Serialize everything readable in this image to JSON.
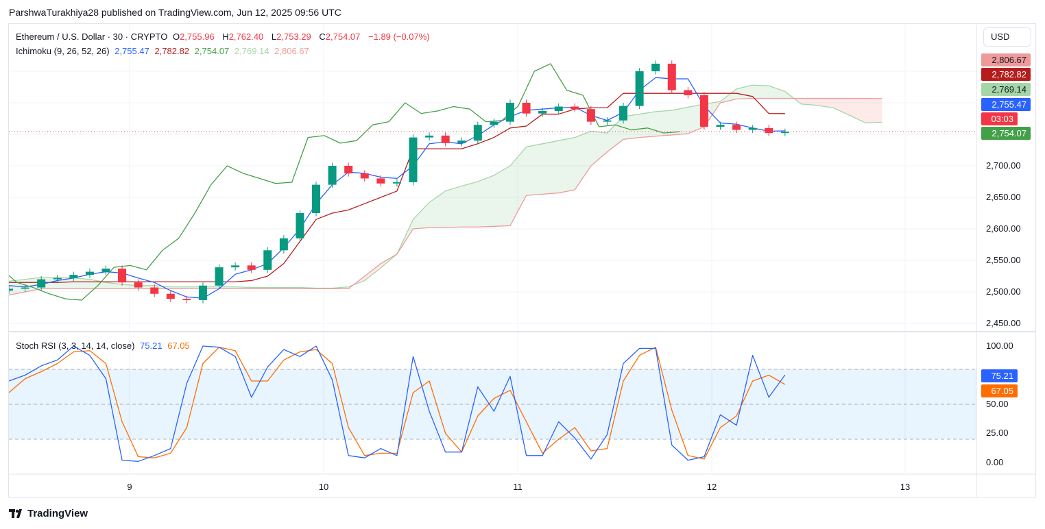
{
  "attribution": "ParshwaTurakhiya28 published on TradingView.com, Jun 12, 2025 09:56 UTC",
  "legend": {
    "symbol": "Ethereum / U.S. Dollar · 30 · CRYPTO",
    "o_label": "O",
    "o": "2,755.96",
    "h_label": "H",
    "h": "2,762.40",
    "l_label": "L",
    "l": "2,753.29",
    "c_label": "C",
    "c": "2,754.07",
    "change": "−1.89 (−0.07%)"
  },
  "ichimoku": {
    "label": "Ichimoku (9, 26, 52, 26)",
    "conversion": "2,755.47",
    "base": "2,782.82",
    "lagging": "2,754.07",
    "span_a": "2,769.14",
    "span_b": "2,806.67"
  },
  "stoch": {
    "label": "Stoch RSI (3, 3, 14, 14, close)",
    "k": "75.21",
    "d": "67.05"
  },
  "price_axis": {
    "currency": "USD",
    "ticks": [
      "2,700.00",
      "2,650.00",
      "2,600.00",
      "2,550.00",
      "2,500.00",
      "2,450.00"
    ],
    "badges": {
      "span_b": "2,806.67",
      "base": "2,782.82",
      "span_a": "2,769.14",
      "conversion": "2,755.47",
      "countdown": "03:03",
      "last": "2,754.07"
    }
  },
  "stoch_axis": {
    "ticks": [
      "100.00",
      "50.00",
      "25.00",
      "0.00"
    ],
    "k_badge": "75.21",
    "d_badge": "67.05"
  },
  "time_axis": {
    "ticks": [
      "9",
      "10",
      "11",
      "12",
      "13"
    ]
  },
  "brand": "TradingView",
  "colors": {
    "up": "#089981",
    "down": "#f23645",
    "conversion": "#2962ff",
    "base": "#b71c1c",
    "lagging": "#43a047",
    "span_a": "#a5d6a7",
    "span_b": "#ef9a9a",
    "stoch_k": "#2962ff",
    "stoch_d": "#ff6d00"
  },
  "chart_data": [
    {
      "type": "candlestick",
      "title": "Ethereum / U.S. Dollar · 30 · CRYPTO",
      "x_start": "2025-06-08 09:00",
      "x_step_hours": 2,
      "ylim": [
        2430,
        2900
      ],
      "close": [
        2505,
        2507,
        2520,
        2522,
        2527,
        2532,
        2537,
        2515,
        2507,
        2497,
        2489,
        2487,
        2510,
        2539,
        2542,
        2535,
        2566,
        2585,
        2625,
        2670,
        2700,
        2688,
        2680,
        2672,
        2674,
        2745,
        2748,
        2736,
        2740,
        2765,
        2770,
        2800,
        2783,
        2787,
        2794,
        2790,
        2770,
        2772,
        2795,
        2850,
        2862,
        2820,
        2812,
        2762,
        2765,
        2757,
        2760,
        2752,
        2754.07
      ],
      "ichimoku": {
        "conversion": [
          2510,
          2508,
          2512,
          2518,
          2522,
          2528,
          2532,
          2530,
          2522,
          2515,
          2502,
          2492,
          2490,
          2505,
          2528,
          2535,
          2545,
          2570,
          2600,
          2640,
          2670,
          2690,
          2688,
          2682,
          2680,
          2700,
          2735,
          2738,
          2735,
          2748,
          2765,
          2778,
          2788,
          2790,
          2792,
          2793,
          2780,
          2772,
          2785,
          2820,
          2840,
          2838,
          2838,
          2795,
          2768,
          2766,
          2760,
          2755,
          2755.47
        ],
        "base": [
          2515,
          2515,
          2515,
          2515,
          2516,
          2516,
          2516,
          2516,
          2516,
          2516,
          2516,
          2516,
          2516,
          2516,
          2516,
          2518,
          2525,
          2545,
          2580,
          2615,
          2625,
          2630,
          2640,
          2650,
          2660,
          2727,
          2727,
          2727,
          2727,
          2735,
          2745,
          2760,
          2763,
          2782,
          2782,
          2790,
          2792,
          2792,
          2815,
          2815,
          2815,
          2815,
          2815,
          2815,
          2815,
          2815,
          2810,
          2783,
          2782.82
        ],
        "lagging_shift_bars": 26,
        "span_a": [
          2517,
          2520,
          2523,
          2523,
          2522,
          2520,
          2515,
          2512,
          2510,
          2510,
          2508,
          2508,
          2508,
          2508,
          2508,
          2507,
          2507,
          2507,
          2507,
          2506,
          2506,
          2508,
          2518,
          2538,
          2560,
          2615,
          2642,
          2660,
          2668,
          2675,
          2685,
          2700,
          2730,
          2735,
          2740,
          2745,
          2755,
          2752,
          2778,
          2782,
          2786,
          2788,
          2793,
          2798,
          2802,
          2822,
          2828,
          2827,
          2818,
          2798,
          2796,
          2792,
          2780,
          2768,
          2769.14
        ],
        "span_b": [
          2495,
          2500,
          2505,
          2505,
          2505,
          2505,
          2505,
          2505,
          2505,
          2505,
          2505,
          2505,
          2505,
          2505,
          2505,
          2505,
          2505,
          2505,
          2505,
          2505,
          2505,
          2505,
          2525,
          2545,
          2560,
          2600,
          2602,
          2602,
          2603,
          2603,
          2604,
          2605,
          2653,
          2655,
          2657,
          2662,
          2700,
          2722,
          2742,
          2745,
          2747,
          2749,
          2751,
          2762,
          2800,
          2806,
          2807,
          2807,
          2807,
          2807,
          2807,
          2807,
          2807,
          2807,
          2806.67
        ]
      }
    },
    {
      "type": "line",
      "title": "Stoch RSI (3, 3, 14, 14, close)",
      "x_start": "2025-06-08 09:00",
      "x_step_hours": 2,
      "ylim": [
        0,
        100
      ],
      "band": [
        20,
        80
      ],
      "series": [
        {
          "name": "K",
          "values": [
            70,
            75,
            83,
            88,
            100,
            92,
            72,
            2,
            1,
            6,
            12,
            68,
            100,
            99,
            91,
            56,
            82,
            97,
            91,
            100,
            71,
            6,
            4,
            12,
            6,
            91,
            44,
            9,
            9,
            65,
            44,
            74,
            6,
            6,
            35,
            21,
            3,
            24,
            85,
            98,
            98,
            15,
            2,
            5,
            41,
            32,
            92,
            56,
            75.21
          ]
        },
        {
          "name": "D",
          "values": [
            60,
            72,
            78,
            85,
            95,
            96,
            85,
            35,
            5,
            4,
            8,
            30,
            85,
            99,
            96,
            70,
            70,
            88,
            95,
            97,
            85,
            30,
            6,
            8,
            8,
            60,
            70,
            25,
            9,
            40,
            55,
            62,
            35,
            8,
            20,
            30,
            10,
            12,
            70,
            92,
            99,
            45,
            6,
            3,
            30,
            40,
            70,
            75,
            67.05
          ]
        }
      ]
    }
  ]
}
